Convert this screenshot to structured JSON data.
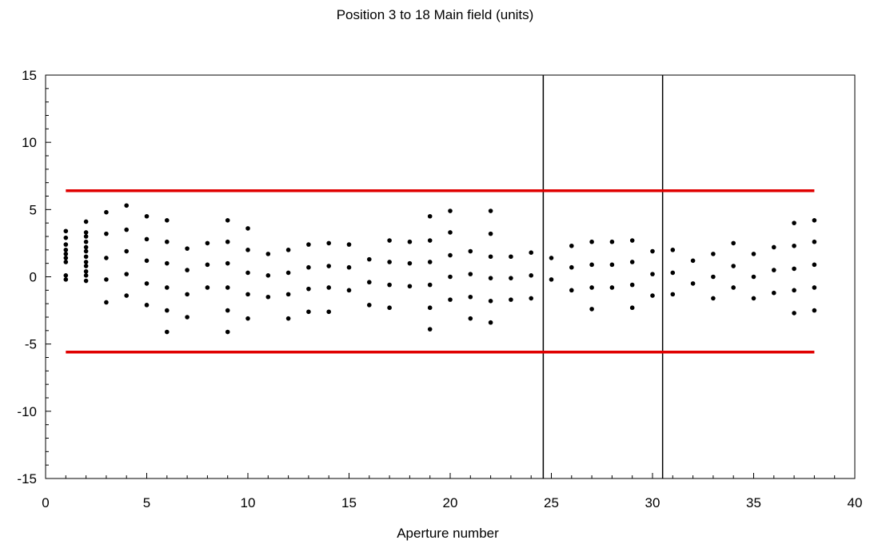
{
  "chart_data": {
    "type": "scatter",
    "title": "Position 3 to 18 Main field (units)",
    "xlabel": "Aperture number",
    "ylabel": "",
    "xlim": [
      0,
      40
    ],
    "ylim": [
      -15,
      15
    ],
    "xticks": [
      0,
      5,
      10,
      15,
      20,
      25,
      30,
      35,
      40
    ],
    "yticks": [
      -15,
      -10,
      -5,
      0,
      5,
      10,
      15
    ],
    "grid": false,
    "legend": "none",
    "reference_lines": {
      "horizontal": [
        {
          "y": 6.4,
          "x_range": [
            1,
            38
          ],
          "color": "#e00000"
        },
        {
          "y": -5.6,
          "x_range": [
            1,
            38
          ],
          "color": "#e00000"
        }
      ],
      "vertical": [
        {
          "x": 24.6,
          "color": "#000000"
        },
        {
          "x": 30.5,
          "color": "#000000"
        }
      ]
    },
    "points": [
      {
        "x": 1,
        "y": 3.4
      },
      {
        "x": 1,
        "y": 2.9
      },
      {
        "x": 1,
        "y": 2.4
      },
      {
        "x": 1,
        "y": 2.0
      },
      {
        "x": 1,
        "y": 1.7
      },
      {
        "x": 1,
        "y": 1.4
      },
      {
        "x": 1,
        "y": 1.1
      },
      {
        "x": 1,
        "y": 0.1
      },
      {
        "x": 1,
        "y": -0.2
      },
      {
        "x": 2,
        "y": 4.1
      },
      {
        "x": 2,
        "y": 3.3
      },
      {
        "x": 2,
        "y": 3.0
      },
      {
        "x": 2,
        "y": 2.6
      },
      {
        "x": 2,
        "y": 2.2
      },
      {
        "x": 2,
        "y": 1.9
      },
      {
        "x": 2,
        "y": 1.5
      },
      {
        "x": 2,
        "y": 1.1
      },
      {
        "x": 2,
        "y": 0.8
      },
      {
        "x": 2,
        "y": 0.4
      },
      {
        "x": 2,
        "y": 0.1
      },
      {
        "x": 2,
        "y": -0.3
      },
      {
        "x": 3,
        "y": 4.8
      },
      {
        "x": 3,
        "y": 3.2
      },
      {
        "x": 3,
        "y": 1.4
      },
      {
        "x": 3,
        "y": -0.2
      },
      {
        "x": 3,
        "y": -1.9
      },
      {
        "x": 4,
        "y": 5.3
      },
      {
        "x": 4,
        "y": 3.5
      },
      {
        "x": 4,
        "y": 1.9
      },
      {
        "x": 4,
        "y": 0.2
      },
      {
        "x": 4,
        "y": -1.4
      },
      {
        "x": 5,
        "y": 4.5
      },
      {
        "x": 5,
        "y": 2.8
      },
      {
        "x": 5,
        "y": 1.2
      },
      {
        "x": 5,
        "y": -0.5
      },
      {
        "x": 5,
        "y": -2.1
      },
      {
        "x": 6,
        "y": 4.2
      },
      {
        "x": 6,
        "y": 2.6
      },
      {
        "x": 6,
        "y": 1.0
      },
      {
        "x": 6,
        "y": -0.8
      },
      {
        "x": 6,
        "y": -2.5
      },
      {
        "x": 6,
        "y": -4.1
      },
      {
        "x": 7,
        "y": 2.1
      },
      {
        "x": 7,
        "y": 0.5
      },
      {
        "x": 7,
        "y": -1.3
      },
      {
        "x": 7,
        "y": -3.0
      },
      {
        "x": 8,
        "y": 2.5
      },
      {
        "x": 8,
        "y": 0.9
      },
      {
        "x": 8,
        "y": -0.8
      },
      {
        "x": 9,
        "y": 4.2
      },
      {
        "x": 9,
        "y": 2.6
      },
      {
        "x": 9,
        "y": 1.0
      },
      {
        "x": 9,
        "y": -0.8
      },
      {
        "x": 9,
        "y": -2.5
      },
      {
        "x": 9,
        "y": -4.1
      },
      {
        "x": 10,
        "y": 3.6
      },
      {
        "x": 10,
        "y": 2.0
      },
      {
        "x": 10,
        "y": 0.3
      },
      {
        "x": 10,
        "y": -1.3
      },
      {
        "x": 10,
        "y": -3.1
      },
      {
        "x": 11,
        "y": 1.7
      },
      {
        "x": 11,
        "y": 0.1
      },
      {
        "x": 11,
        "y": -1.5
      },
      {
        "x": 12,
        "y": 2.0
      },
      {
        "x": 12,
        "y": 0.3
      },
      {
        "x": 12,
        "y": -1.3
      },
      {
        "x": 12,
        "y": -3.1
      },
      {
        "x": 13,
        "y": 2.4
      },
      {
        "x": 13,
        "y": 0.7
      },
      {
        "x": 13,
        "y": -0.9
      },
      {
        "x": 13,
        "y": -2.6
      },
      {
        "x": 14,
        "y": 2.5
      },
      {
        "x": 14,
        "y": 0.8
      },
      {
        "x": 14,
        "y": -0.8
      },
      {
        "x": 14,
        "y": -2.6
      },
      {
        "x": 15,
        "y": 2.4
      },
      {
        "x": 15,
        "y": 0.7
      },
      {
        "x": 15,
        "y": -1.0
      },
      {
        "x": 16,
        "y": 1.3
      },
      {
        "x": 16,
        "y": -0.4
      },
      {
        "x": 16,
        "y": -2.1
      },
      {
        "x": 17,
        "y": 2.7
      },
      {
        "x": 17,
        "y": 1.1
      },
      {
        "x": 17,
        "y": -0.6
      },
      {
        "x": 17,
        "y": -2.3
      },
      {
        "x": 18,
        "y": 2.6
      },
      {
        "x": 18,
        "y": 1.0
      },
      {
        "x": 18,
        "y": -0.7
      },
      {
        "x": 19,
        "y": 4.5
      },
      {
        "x": 19,
        "y": 2.7
      },
      {
        "x": 19,
        "y": 1.1
      },
      {
        "x": 19,
        "y": -0.6
      },
      {
        "x": 19,
        "y": -2.3
      },
      {
        "x": 19,
        "y": -3.9
      },
      {
        "x": 20,
        "y": 4.9
      },
      {
        "x": 20,
        "y": 3.3
      },
      {
        "x": 20,
        "y": 1.6
      },
      {
        "x": 20,
        "y": 0.0
      },
      {
        "x": 20,
        "y": -1.7
      },
      {
        "x": 21,
        "y": 1.9
      },
      {
        "x": 21,
        "y": 0.2
      },
      {
        "x": 21,
        "y": -1.5
      },
      {
        "x": 21,
        "y": -3.1
      },
      {
        "x": 22,
        "y": 4.9
      },
      {
        "x": 22,
        "y": 3.2
      },
      {
        "x": 22,
        "y": 1.5
      },
      {
        "x": 22,
        "y": -0.1
      },
      {
        "x": 22,
        "y": -1.8
      },
      {
        "x": 22,
        "y": -3.4
      },
      {
        "x": 23,
        "y": 1.5
      },
      {
        "x": 23,
        "y": -0.1
      },
      {
        "x": 23,
        "y": -1.7
      },
      {
        "x": 24,
        "y": 1.8
      },
      {
        "x": 24,
        "y": 0.1
      },
      {
        "x": 24,
        "y": -1.6
      },
      {
        "x": 25,
        "y": 1.4
      },
      {
        "x": 25,
        "y": -0.2
      },
      {
        "x": 26,
        "y": 2.3
      },
      {
        "x": 26,
        "y": 0.7
      },
      {
        "x": 26,
        "y": -1.0
      },
      {
        "x": 27,
        "y": 2.6
      },
      {
        "x": 27,
        "y": 0.9
      },
      {
        "x": 27,
        "y": -0.8
      },
      {
        "x": 27,
        "y": -2.4
      },
      {
        "x": 28,
        "y": 2.6
      },
      {
        "x": 28,
        "y": 0.9
      },
      {
        "x": 28,
        "y": -0.8
      },
      {
        "x": 29,
        "y": 2.7
      },
      {
        "x": 29,
        "y": 1.1
      },
      {
        "x": 29,
        "y": -0.6
      },
      {
        "x": 29,
        "y": -2.3
      },
      {
        "x": 30,
        "y": 1.9
      },
      {
        "x": 30,
        "y": 0.2
      },
      {
        "x": 30,
        "y": -1.4
      },
      {
        "x": 31,
        "y": 2.0
      },
      {
        "x": 31,
        "y": 0.3
      },
      {
        "x": 31,
        "y": -1.3
      },
      {
        "x": 32,
        "y": 1.2
      },
      {
        "x": 32,
        "y": -0.5
      },
      {
        "x": 33,
        "y": 1.7
      },
      {
        "x": 33,
        "y": 0.0
      },
      {
        "x": 33,
        "y": -1.6
      },
      {
        "x": 34,
        "y": 2.5
      },
      {
        "x": 34,
        "y": 0.8
      },
      {
        "x": 34,
        "y": -0.8
      },
      {
        "x": 35,
        "y": 1.7
      },
      {
        "x": 35,
        "y": 0.0
      },
      {
        "x": 35,
        "y": -1.6
      },
      {
        "x": 36,
        "y": 2.2
      },
      {
        "x": 36,
        "y": 0.5
      },
      {
        "x": 36,
        "y": -1.2
      },
      {
        "x": 37,
        "y": 4.0
      },
      {
        "x": 37,
        "y": 2.3
      },
      {
        "x": 37,
        "y": 0.6
      },
      {
        "x": 37,
        "y": -1.0
      },
      {
        "x": 37,
        "y": -2.7
      },
      {
        "x": 38,
        "y": 4.2
      },
      {
        "x": 38,
        "y": 2.6
      },
      {
        "x": 38,
        "y": 0.9
      },
      {
        "x": 38,
        "y": -0.8
      },
      {
        "x": 38,
        "y": -2.5
      }
    ]
  }
}
